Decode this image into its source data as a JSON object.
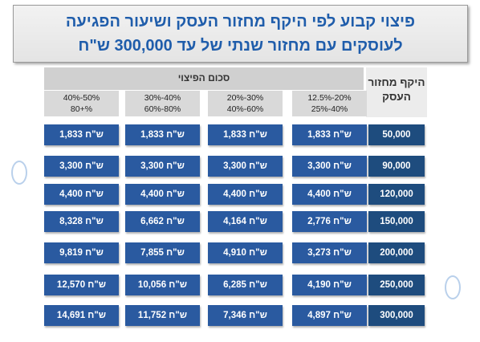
{
  "title": {
    "line1": "פיצוי קבוע לפי היקף מחזור העסק ושיעור הפגיעה",
    "line2": "לעוסקים עם מחזור שנתי של עד 300,000 ש\"ח"
  },
  "table": {
    "row_header_title": "היקף מחזור העסק",
    "compensation_label": "סכום הפיצוי",
    "rate_columns": [
      {
        "line1": "12.5%-20%",
        "line2": "25%-40%"
      },
      {
        "line1": "20%-30%",
        "line2": "40%-60%"
      },
      {
        "line1": "30%-40%",
        "line2": "60%-80%"
      },
      {
        "line1": "40%-50%",
        "line2": "80+%"
      }
    ],
    "rows": [
      {
        "turnover": "50,000",
        "values": [
          "1,833 ש\"ח",
          "1,833 ש\"ח",
          "1,833 ש\"ח",
          "1,833 ש\"ח"
        ]
      },
      {
        "turnover": "90,000",
        "values": [
          "3,300 ש\"ח",
          "3,300 ש\"ח",
          "3,300 ש\"ח",
          "3,300 ש\"ח"
        ]
      },
      {
        "turnover": "120,000",
        "values": [
          "4,400 ש\"ח",
          "4,400 ש\"ח",
          "4,400 ש\"ח",
          "4,400 ש\"ח"
        ]
      },
      {
        "turnover": "150,000",
        "values": [
          "2,776 ש\"ח",
          "4,164 ש\"ח",
          "6,662 ש\"ח",
          "8,328 ש\"ח"
        ]
      },
      {
        "turnover": "200,000",
        "values": [
          "3,273 ש\"ח",
          "4,910 ש\"ח",
          "7,855 ש\"ח",
          "9,819 ש\"ח"
        ]
      },
      {
        "turnover": "250,000",
        "values": [
          "4,190 ש\"ח",
          "6,285 ש\"ח",
          "10,056 ש\"ח",
          "12,570 ש\"ח"
        ]
      },
      {
        "turnover": "300,000",
        "values": [
          "4,897 ש\"ח",
          "7,346 ש\"ח",
          "11,752 ש\"ח",
          "14,691 ש\"ח"
        ]
      }
    ]
  },
  "colors": {
    "title_text": "#1f5dab",
    "value_cell": "#2a5aa0",
    "row_head_cell": "#1e4c7e",
    "header_band": "#d0d0d0"
  }
}
